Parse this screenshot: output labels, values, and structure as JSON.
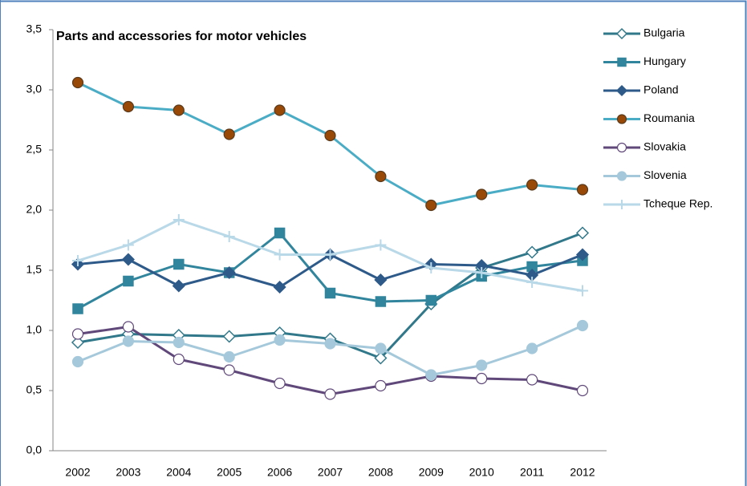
{
  "chart_data": {
    "type": "line",
    "title": "Parts and accessories for motor vehicles",
    "categories": [
      "2002",
      "2003",
      "2004",
      "2005",
      "2006",
      "2007",
      "2008",
      "2009",
      "2010",
      "2011",
      "2012"
    ],
    "ylim": [
      0,
      3.5
    ],
    "yticks": [
      {
        "value": 0,
        "label": "0,0"
      },
      {
        "value": 0.5,
        "label": "0,5"
      },
      {
        "value": 1,
        "label": "1,0"
      },
      {
        "value": 1.5,
        "label": "1,5"
      },
      {
        "value": 2,
        "label": "2,0"
      },
      {
        "value": 2.5,
        "label": "2,5"
      },
      {
        "value": 3,
        "label": "3,0"
      },
      {
        "value": 3.5,
        "label": "3,5"
      }
    ],
    "grid": false,
    "legend": "right",
    "series": [
      {
        "name": "Bulgaria",
        "color": "#31788a",
        "marker": "diamond",
        "marker_fill": "#ffffff",
        "values": [
          0.9,
          0.97,
          0.96,
          0.95,
          0.98,
          0.93,
          0.77,
          1.22,
          1.52,
          1.65,
          1.81
        ]
      },
      {
        "name": "Hungary",
        "color": "#31859c",
        "marker": "square",
        "marker_fill": "#31859c",
        "values": [
          1.18,
          1.41,
          1.55,
          1.48,
          1.81,
          1.31,
          1.24,
          1.25,
          1.45,
          1.53,
          1.58
        ]
      },
      {
        "name": "Poland",
        "color": "#2e5a8a",
        "marker": "diamond",
        "marker_fill": "#2e5a8a",
        "values": [
          1.55,
          1.59,
          1.37,
          1.48,
          1.36,
          1.63,
          1.42,
          1.55,
          1.54,
          1.46,
          1.63
        ]
      },
      {
        "name": "Roumania",
        "color": "#4bacc6",
        "marker": "circle",
        "marker_fill": "#984807",
        "values": [
          3.06,
          2.86,
          2.83,
          2.63,
          2.83,
          2.62,
          2.28,
          2.04,
          2.13,
          2.21,
          2.17
        ]
      },
      {
        "name": "Slovakia",
        "color": "#60497a",
        "marker": "circle",
        "marker_fill": "#ffffff",
        "values": [
          0.97,
          1.03,
          0.76,
          0.67,
          0.56,
          0.47,
          0.54,
          0.62,
          0.6,
          0.59,
          0.5
        ]
      },
      {
        "name": "Slovenia",
        "color": "#a5c9da",
        "marker": "circle",
        "marker_fill": "#a5c9da",
        "values": [
          0.74,
          0.91,
          0.9,
          0.78,
          0.92,
          0.89,
          0.85,
          0.63,
          0.71,
          0.85,
          1.04
        ]
      },
      {
        "name": "Tcheque Rep.",
        "color": "#b9d8e8",
        "marker": "plus",
        "marker_fill": "#b9d8e8",
        "values": [
          1.58,
          1.71,
          1.92,
          1.78,
          1.63,
          1.63,
          1.71,
          1.52,
          1.48,
          1.4,
          1.33
        ]
      }
    ]
  }
}
